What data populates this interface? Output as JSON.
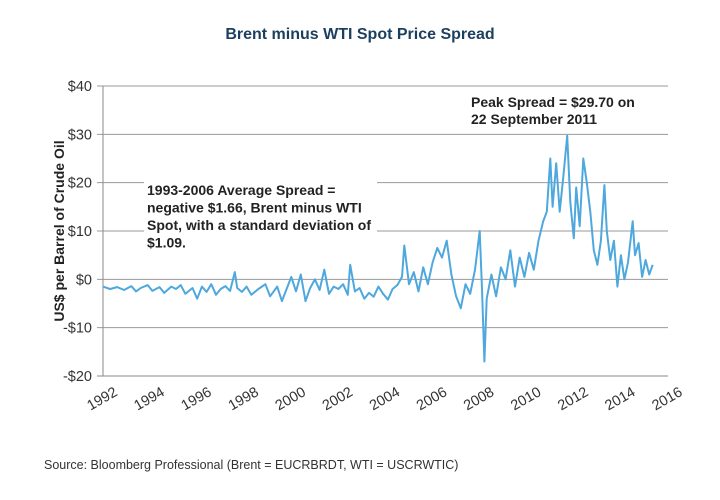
{
  "chart_data": {
    "type": "line",
    "title": "Brent minus WTI Spot Price Spread",
    "xlabel": "",
    "ylabel": "US$ per Barrel of Crude Oil",
    "xlim": [
      1992,
      2016
    ],
    "ylim": [
      -20,
      40
    ],
    "grid": true,
    "x_ticks": [
      "1992",
      "1994",
      "1996",
      "1998",
      "2000",
      "2002",
      "2004",
      "2006",
      "2008",
      "2010",
      "2012",
      "2014",
      "2016"
    ],
    "x_tick_values": [
      1992,
      1994,
      1996,
      1998,
      2000,
      2002,
      2004,
      2006,
      2008,
      2010,
      2012,
      2014,
      2016
    ],
    "y_ticks": [
      "$40",
      "$30",
      "$20",
      "$10",
      "$0",
      "-$10",
      "-$20"
    ],
    "y_tick_values": [
      40,
      30,
      20,
      10,
      0,
      -10,
      -20
    ],
    "annotations": [
      {
        "text_lines": [
          "Peak Spread = $29.70 on",
          "22 September 2011"
        ]
      },
      {
        "text_lines": [
          "1993-2006 Average Spread =",
          "negative $1.66, Brent minus WTI",
          "Spot, with a standard deviation of",
          "$1.09."
        ]
      }
    ],
    "series": [
      {
        "name": "Brent minus WTI spread",
        "color": "#4ea8de",
        "x": [
          1992.0,
          1992.3,
          1992.6,
          1992.9,
          1993.2,
          1993.4,
          1993.6,
          1993.9,
          1994.1,
          1994.4,
          1994.6,
          1994.9,
          1995.1,
          1995.3,
          1995.5,
          1995.8,
          1996.0,
          1996.2,
          1996.4,
          1996.6,
          1996.8,
          1997.0,
          1997.2,
          1997.4,
          1997.6,
          1997.7,
          1997.9,
          1998.1,
          1998.3,
          1998.6,
          1998.9,
          1999.1,
          1999.4,
          1999.6,
          1999.8,
          2000.0,
          2000.2,
          2000.4,
          2000.6,
          2000.8,
          2001.0,
          2001.2,
          2001.4,
          2001.6,
          2001.8,
          2002.0,
          2002.2,
          2002.4,
          2002.5,
          2002.7,
          2002.9,
          2003.1,
          2003.3,
          2003.5,
          2003.7,
          2003.9,
          2004.1,
          2004.3,
          2004.5,
          2004.7,
          2004.8,
          2005.0,
          2005.2,
          2005.4,
          2005.6,
          2005.8,
          2006.0,
          2006.2,
          2006.4,
          2006.6,
          2006.8,
          2007.0,
          2007.2,
          2007.4,
          2007.6,
          2007.8,
          2008.0,
          2008.1,
          2008.2,
          2008.3,
          2008.5,
          2008.7,
          2008.9,
          2009.1,
          2009.3,
          2009.5,
          2009.7,
          2009.9,
          2010.1,
          2010.3,
          2010.5,
          2010.7,
          2010.85,
          2011.0,
          2011.1,
          2011.25,
          2011.4,
          2011.55,
          2011.72,
          2011.85,
          2012.0,
          2012.1,
          2012.25,
          2012.4,
          2012.55,
          2012.7,
          2012.85,
          2013.0,
          2013.15,
          2013.3,
          2013.4,
          2013.55,
          2013.7,
          2013.85,
          2014.0,
          2014.15,
          2014.3,
          2014.5,
          2014.6,
          2014.75,
          2014.9,
          2015.05,
          2015.2,
          2015.35
        ],
        "y": [
          -1.5,
          -2.0,
          -1.6,
          -2.2,
          -1.4,
          -2.5,
          -1.8,
          -1.2,
          -2.4,
          -1.6,
          -2.8,
          -1.5,
          -2.0,
          -1.2,
          -3.0,
          -1.8,
          -4.0,
          -1.5,
          -2.6,
          -1.0,
          -3.2,
          -2.0,
          -1.4,
          -2.4,
          1.5,
          -1.8,
          -2.6,
          -1.5,
          -3.2,
          -2.0,
          -1.0,
          -3.5,
          -1.5,
          -4.5,
          -2.0,
          0.5,
          -2.5,
          1.0,
          -4.5,
          -1.8,
          0.0,
          -2.2,
          2.0,
          -3.0,
          -1.5,
          -2.0,
          -1.0,
          -3.2,
          3.0,
          -2.5,
          -1.8,
          -4.0,
          -2.8,
          -3.6,
          -1.5,
          -3.0,
          -4.2,
          -2.0,
          -1.2,
          0.5,
          7.0,
          -1.0,
          1.5,
          -2.5,
          2.5,
          -1.0,
          3.5,
          6.5,
          4.5,
          8.0,
          1.0,
          -3.5,
          -6.0,
          -1.0,
          -3.0,
          2.0,
          10.0,
          -2.0,
          -17.0,
          -4.0,
          1.0,
          -3.5,
          2.5,
          0.0,
          6.0,
          -1.5,
          4.5,
          0.5,
          5.5,
          2.0,
          8.0,
          12.0,
          14.0,
          25.0,
          15.0,
          24.0,
          14.0,
          21.0,
          29.7,
          16.0,
          8.5,
          19.0,
          11.0,
          25.0,
          20.0,
          14.0,
          6.0,
          3.0,
          8.0,
          19.5,
          10.0,
          4.0,
          8.0,
          -1.5,
          5.0,
          0.0,
          3.5,
          12.0,
          5.0,
          7.5,
          0.5,
          4.0,
          1.0,
          3.0
        ]
      }
    ]
  },
  "source": "Source: Bloomberg Professional (Brent = EUCRBRDT, WTI = USCRWTIC)"
}
